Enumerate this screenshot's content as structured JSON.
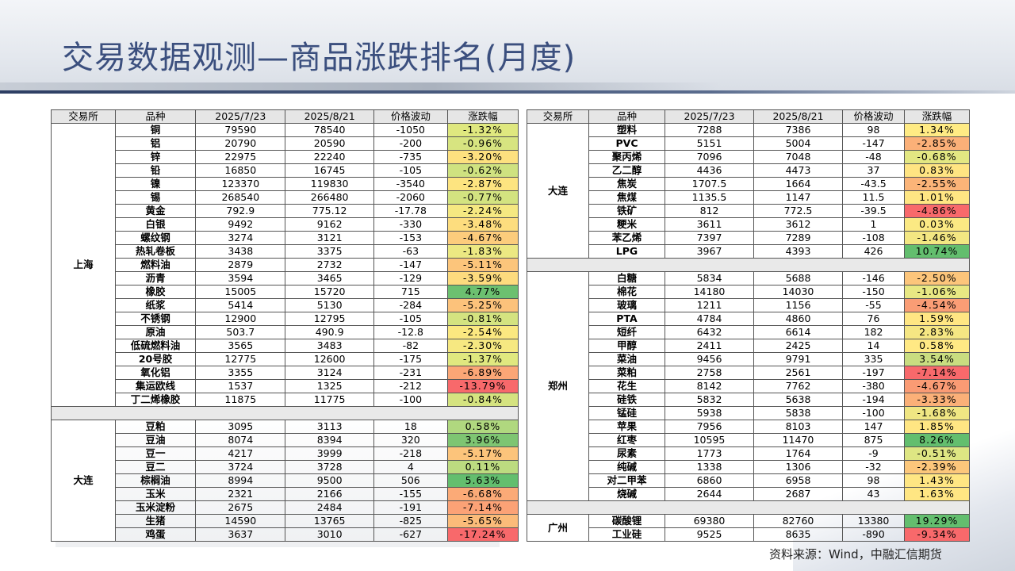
{
  "title": "交易数据观测—商品涨跌排名(月度)",
  "source": "资料来源：Wind，中融汇信期货",
  "left_headers": [
    "交易所",
    "品种",
    "2025/7/23",
    "2025/8/21",
    "价格波动",
    "涨跌幅"
  ],
  "right_headers": [
    "交易所",
    "品种",
    "2025/7/23",
    "2025/8/21",
    "价格波动",
    "涨跌幅"
  ],
  "left_groups": [
    {
      "exchange": "上海",
      "rows": [
        {
          "name": "铜",
          "p1": "79590",
          "p2": "78540",
          "chg": "-1050",
          "pct": "-1.32%",
          "bg": "#dfe87f"
        },
        {
          "name": "铝",
          "p1": "20790",
          "p2": "20590",
          "chg": "-200",
          "pct": "-0.96%",
          "bg": "#d7e480"
        },
        {
          "name": "锌",
          "p1": "22975",
          "p2": "22240",
          "chg": "-735",
          "pct": "-3.20%",
          "bg": "#fde07f"
        },
        {
          "name": "铅",
          "p1": "16850",
          "p2": "16745",
          "chg": "-105",
          "pct": "-0.62%",
          "bg": "#cfe280"
        },
        {
          "name": "镍",
          "p1": "123370",
          "p2": "119830",
          "chg": "-3540",
          "pct": "-2.87%",
          "bg": "#fde480"
        },
        {
          "name": "锡",
          "p1": "268540",
          "p2": "266480",
          "chg": "-2060",
          "pct": "-0.77%",
          "bg": "#d3e380"
        },
        {
          "name": "黄金",
          "p1": "792.9",
          "p2": "775.12",
          "chg": "-17.78",
          "pct": "-2.24%",
          "bg": "#f5e881"
        },
        {
          "name": "白银",
          "p1": "9492",
          "p2": "9162",
          "chg": "-330",
          "pct": "-3.48%",
          "bg": "#fddd7e"
        },
        {
          "name": "螺纹钢",
          "p1": "3274",
          "p2": "3121",
          "chg": "-153",
          "pct": "-4.67%",
          "bg": "#fccc7c"
        },
        {
          "name": "热轧卷板",
          "p1": "3438",
          "p2": "3375",
          "chg": "-63",
          "pct": "-1.83%",
          "bg": "#ece882"
        },
        {
          "name": "燃料油",
          "p1": "2879",
          "p2": "2732",
          "chg": "-147",
          "pct": "-5.11%",
          "bg": "#fcc57b"
        },
        {
          "name": "沥青",
          "p1": "3594",
          "p2": "3465",
          "chg": "-129",
          "pct": "-3.59%",
          "bg": "#fddb7e"
        },
        {
          "name": "橡胶",
          "p1": "15005",
          "p2": "15720",
          "chg": "715",
          "pct": "4.77%",
          "bg": "#6cc070"
        },
        {
          "name": "纸浆",
          "p1": "5414",
          "p2": "5130",
          "chg": "-284",
          "pct": "-5.25%",
          "bg": "#fcc27b"
        },
        {
          "name": "不锈钢",
          "p1": "12900",
          "p2": "12795",
          "chg": "-105",
          "pct": "-0.81%",
          "bg": "#d4e380"
        },
        {
          "name": "原油",
          "p1": "503.7",
          "p2": "490.9",
          "chg": "-12.8",
          "pct": "-2.54%",
          "bg": "#fbe880"
        },
        {
          "name": "低硫燃料油",
          "p1": "3565",
          "p2": "3483",
          "chg": "-82",
          "pct": "-2.30%",
          "bg": "#f6e881"
        },
        {
          "name": "20号胶",
          "p1": "12775",
          "p2": "12600",
          "chg": "-175",
          "pct": "-1.37%",
          "bg": "#e0e87f"
        },
        {
          "name": "氧化铝",
          "p1": "3355",
          "p2": "3124",
          "chg": "-231",
          "pct": "-6.89%",
          "bg": "#fba676"
        },
        {
          "name": "集运欧线",
          "p1": "1537",
          "p2": "1325",
          "chg": "-212",
          "pct": "-13.79%",
          "bg": "#f8696b"
        },
        {
          "name": "丁二烯橡胶",
          "p1": "11875",
          "p2": "11775",
          "chg": "-100",
          "pct": "-0.84%",
          "bg": "#d5e380"
        }
      ]
    },
    {
      "exchange": "大连",
      "rows": [
        {
          "name": "豆粕",
          "p1": "3095",
          "p2": "3113",
          "chg": "18",
          "pct": "0.58%",
          "bg": "#b0d87f"
        },
        {
          "name": "豆油",
          "p1": "8074",
          "p2": "8394",
          "chg": "320",
          "pct": "3.96%",
          "bg": "#7ec572"
        },
        {
          "name": "豆一",
          "p1": "4217",
          "p2": "3999",
          "chg": "-218",
          "pct": "-5.17%",
          "bg": "#fcc47b"
        },
        {
          "name": "豆二",
          "p1": "3724",
          "p2": "3728",
          "chg": "4",
          "pct": "0.11%",
          "bg": "#bcdb80"
        },
        {
          "name": "棕榈油",
          "p1": "8994",
          "p2": "9500",
          "chg": "506",
          "pct": "5.63%",
          "bg": "#63be6e"
        },
        {
          "name": "玉米",
          "p1": "2321",
          "p2": "2166",
          "chg": "-155",
          "pct": "-6.68%",
          "bg": "#fbaa77"
        },
        {
          "name": "玉米淀粉",
          "p1": "2675",
          "p2": "2484",
          "chg": "-191",
          "pct": "-7.14%",
          "bg": "#fba276"
        },
        {
          "name": "生猪",
          "p1": "14590",
          "p2": "13765",
          "chg": "-825",
          "pct": "-5.65%",
          "bg": "#fbbb79"
        },
        {
          "name": "鸡蛋",
          "p1": "3637",
          "p2": "3010",
          "chg": "-627",
          "pct": "-17.24%",
          "bg": "#f8696b"
        }
      ]
    }
  ],
  "right_groups": [
    {
      "exchange": "大连",
      "rows": [
        {
          "name": "塑料",
          "p1": "7288",
          "p2": "7386",
          "chg": "98",
          "pct": "1.34%",
          "bg": "#ffeb84"
        },
        {
          "name": "PVC",
          "p1": "5151",
          "p2": "5004",
          "chg": "-147",
          "pct": "-2.85%",
          "bg": "#fbb078"
        },
        {
          "name": "聚丙烯",
          "p1": "7096",
          "p2": "7048",
          "chg": "-48",
          "pct": "-0.68%",
          "bg": "#e3e782"
        },
        {
          "name": "乙二醇",
          "p1": "4436",
          "p2": "4473",
          "chg": "37",
          "pct": "0.83%",
          "bg": "#ffe482"
        },
        {
          "name": "焦炭",
          "p1": "1707.5",
          "p2": "1664",
          "chg": "-43.5",
          "pct": "-2.55%",
          "bg": "#fbb478"
        },
        {
          "name": "焦煤",
          "p1": "1135.5",
          "p2": "1147",
          "chg": "11.5",
          "pct": "1.01%",
          "bg": "#ffe683"
        },
        {
          "name": "铁矿",
          "p1": "812",
          "p2": "772.5",
          "chg": "-39.5",
          "pct": "-4.86%",
          "bg": "#f8696b"
        },
        {
          "name": "粳米",
          "p1": "3611",
          "p2": "3612",
          "chg": "1",
          "pct": "0.03%",
          "bg": "#fbe983"
        },
        {
          "name": "苯乙烯",
          "p1": "7397",
          "p2": "7289",
          "chg": "-108",
          "pct": "-1.46%",
          "bg": "#f3e782"
        },
        {
          "name": "LPG",
          "p1": "3967",
          "p2": "4393",
          "chg": "426",
          "pct": "10.74%",
          "bg": "#63be6e"
        }
      ]
    },
    {
      "exchange": "郑州",
      "rows": [
        {
          "name": "白糖",
          "p1": "5834",
          "p2": "5688",
          "chg": "-146",
          "pct": "-2.50%",
          "bg": "#fcc57b"
        },
        {
          "name": "棉花",
          "p1": "14180",
          "p2": "14030",
          "chg": "-150",
          "pct": "-1.06%",
          "bg": "#e8e883"
        },
        {
          "name": "玻璃",
          "p1": "1211",
          "p2": "1156",
          "chg": "-55",
          "pct": "-4.54%",
          "bg": "#fa9d75"
        },
        {
          "name": "PTA",
          "p1": "4784",
          "p2": "4860",
          "chg": "76",
          "pct": "1.59%",
          "bg": "#ffe683"
        },
        {
          "name": "短纤",
          "p1": "6432",
          "p2": "6614",
          "chg": "182",
          "pct": "2.83%",
          "bg": "#f5e683"
        },
        {
          "name": "甲醇",
          "p1": "2411",
          "p2": "2425",
          "chg": "14",
          "pct": "0.58%",
          "bg": "#ffe984"
        },
        {
          "name": "菜油",
          "p1": "9456",
          "p2": "9791",
          "chg": "335",
          "pct": "3.54%",
          "bg": "#c9dd80"
        },
        {
          "name": "菜粕",
          "p1": "2758",
          "p2": "2561",
          "chg": "-197",
          "pct": "-7.14%",
          "bg": "#f8696b"
        },
        {
          "name": "花生",
          "p1": "8142",
          "p2": "7762",
          "chg": "-380",
          "pct": "-4.67%",
          "bg": "#fa9b74"
        },
        {
          "name": "硅铁",
          "p1": "5832",
          "p2": "5638",
          "chg": "-194",
          "pct": "-3.33%",
          "bg": "#fbb078"
        },
        {
          "name": "锰硅",
          "p1": "5938",
          "p2": "5838",
          "chg": "-100",
          "pct": "-1.68%",
          "bg": "#f0e683"
        },
        {
          "name": "苹果",
          "p1": "7956",
          "p2": "8103",
          "chg": "147",
          "pct": "1.85%",
          "bg": "#ffe683"
        },
        {
          "name": "红枣",
          "p1": "10595",
          "p2": "11470",
          "chg": "875",
          "pct": "8.26%",
          "bg": "#63be6e"
        },
        {
          "name": "尿素",
          "p1": "1773",
          "p2": "1764",
          "chg": "-9",
          "pct": "-0.51%",
          "bg": "#dee683"
        },
        {
          "name": "纯碱",
          "p1": "1338",
          "p2": "1306",
          "chg": "-32",
          "pct": "-2.39%",
          "bg": "#fcc77b"
        },
        {
          "name": "对二甲苯",
          "p1": "6860",
          "p2": "6958",
          "chg": "98",
          "pct": "1.43%",
          "bg": "#ffe683"
        },
        {
          "name": "烧碱",
          "p1": "2644",
          "p2": "2687",
          "chg": "43",
          "pct": "1.63%",
          "bg": "#ffe683"
        }
      ]
    },
    {
      "exchange": "广州",
      "rows": [
        {
          "name": "碳酸锂",
          "p1": "69380",
          "p2": "82760",
          "chg": "13380",
          "pct": "19.29%",
          "bg": "#63be6e"
        },
        {
          "name": "工业硅",
          "p1": "9525",
          "p2": "8635",
          "chg": "-890",
          "pct": "-9.34%",
          "bg": "#f8696b"
        }
      ]
    }
  ]
}
